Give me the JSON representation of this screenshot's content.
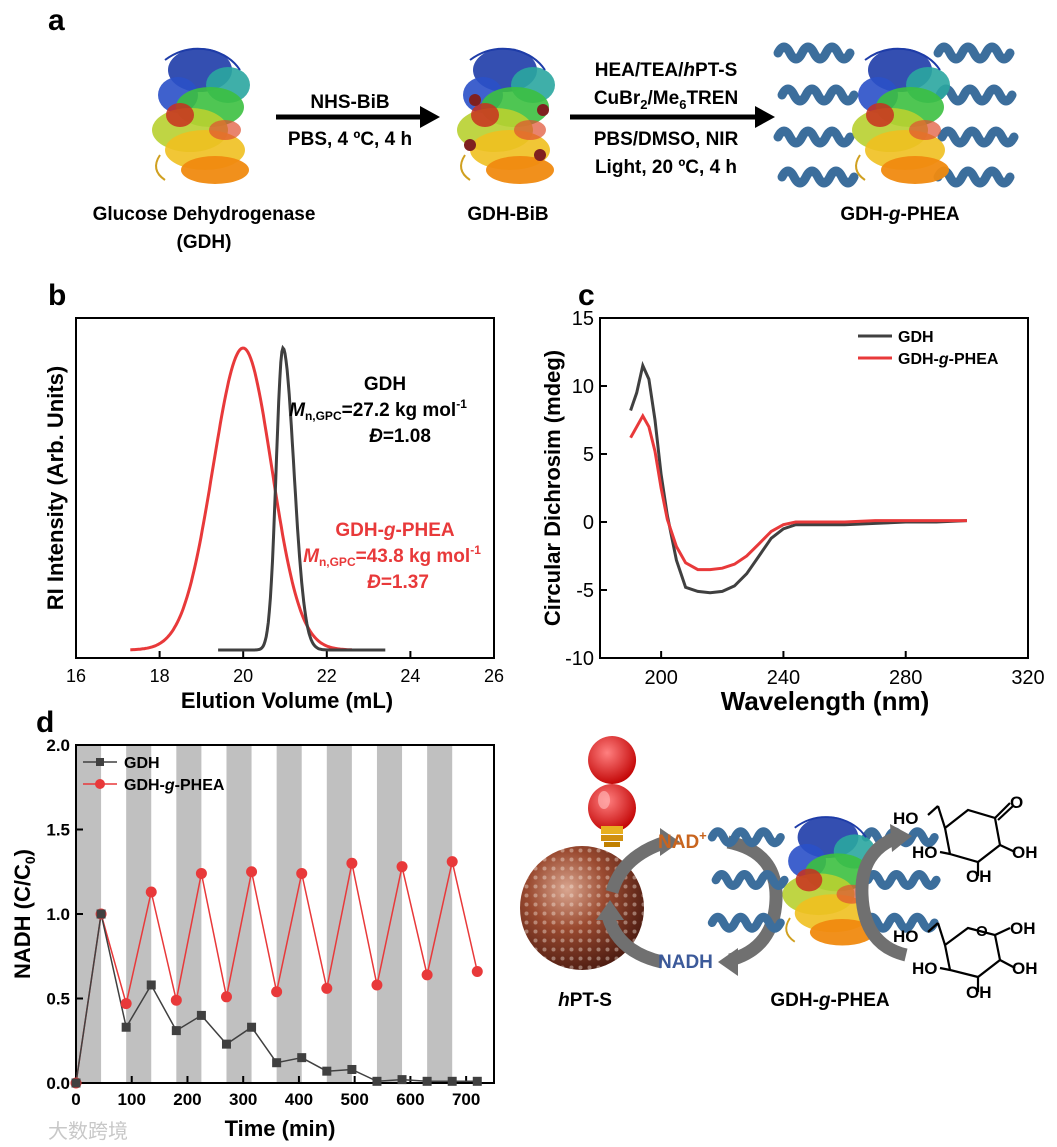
{
  "panel_labels": {
    "a": "a",
    "b": "b",
    "c": "c",
    "d": "d"
  },
  "scheme": {
    "protein1_label_line1": "Glucose Dehydrogenase",
    "protein1_label_line2": "(GDH)",
    "step1_above": "NHS-BiB",
    "step1_below": "PBS, 4 ºC, 4 h",
    "protein2_label": "GDH-BiB",
    "step2_line1": "HEA/TEA/hPT-S",
    "step2_line2_a": "CuBr",
    "step2_line2_sub": "2",
    "step2_line2_b": "/Me",
    "step2_line2_sub2": "6",
    "step2_line2_c": "TREN",
    "step2_line3": "PBS/DMSO, NIR",
    "step2_line4": "Light, 20 ºC, 4 h",
    "protein3_label": "GDH-g-PHEA"
  },
  "colors": {
    "gdh": "#404040",
    "gdh_g_phea": "#e8393a",
    "polymer": "#3c6e9c",
    "nad_plus": "#c8641e",
    "nadh": "#3c5a9a",
    "light_band": "#c0c0c0"
  },
  "chart_data": [
    {
      "panel": "b",
      "type": "line",
      "xlabel": "Elution Volume (mL)",
      "ylabel": "RI Intensity (Arb. Units)",
      "xlim": [
        16,
        26
      ],
      "xticks": [
        16,
        18,
        20,
        22,
        24,
        26
      ],
      "series": [
        {
          "name": "GDH",
          "peak_x": 20.95,
          "x_range": [
            19.4,
            23.4
          ],
          "peak_y": 1.0
        },
        {
          "name": "GDH-g-PHEA",
          "peak_x": 20.0,
          "x_range": [
            17.3,
            22.6
          ],
          "peak_y": 1.0
        }
      ],
      "annotations": [
        {
          "title": "GDH",
          "mn": "=27.2 kg mol",
          "dispersity": "=1.08"
        },
        {
          "title": "GDH-g-PHEA",
          "mn": "=43.8 kg mol",
          "dispersity": "=1.37"
        }
      ],
      "mn_symbol": "M",
      "mn_sub": "n,GPC",
      "mn_sup": "-1",
      "dispersity_symbol": "Đ"
    },
    {
      "panel": "c",
      "type": "line",
      "xlabel": "Wavelength (nm)",
      "ylabel": "Circular Dichrosim (mdeg)",
      "xlim": [
        180,
        320
      ],
      "ylim": [
        -10,
        15
      ],
      "xticks": [
        200,
        240,
        280,
        320
      ],
      "yticks": [
        -10,
        -5,
        0,
        5,
        10,
        15
      ],
      "legend": "top-right",
      "series": [
        {
          "name": "GDH",
          "x": [
            190,
            192,
            194,
            196,
            198,
            200,
            202,
            205,
            208,
            212,
            216,
            220,
            224,
            228,
            232,
            236,
            240,
            244,
            250,
            260,
            270,
            280,
            290,
            300
          ],
          "y": [
            8.2,
            9.5,
            11.5,
            10.5,
            7.5,
            3.5,
            0.5,
            -2.8,
            -4.8,
            -5.1,
            -5.2,
            -5.1,
            -4.7,
            -3.8,
            -2.5,
            -1.2,
            -0.5,
            -0.2,
            -0.2,
            -0.2,
            -0.1,
            0.0,
            0.0,
            0.1
          ]
        },
        {
          "name": "GDH-g-PHEA",
          "x": [
            190,
            192,
            194,
            196,
            198,
            200,
            202,
            205,
            208,
            212,
            216,
            220,
            224,
            228,
            232,
            236,
            240,
            244,
            250,
            260,
            270,
            280,
            290,
            300
          ],
          "y": [
            6.2,
            7.0,
            7.8,
            7.0,
            5.2,
            2.5,
            0.2,
            -1.8,
            -3.0,
            -3.5,
            -3.5,
            -3.4,
            -3.1,
            -2.5,
            -1.6,
            -0.7,
            -0.2,
            0.0,
            0.0,
            0.0,
            0.1,
            0.1,
            0.1,
            0.1
          ]
        }
      ]
    },
    {
      "panel": "d",
      "type": "line",
      "xlabel": "Time (min)",
      "ylabel_a": "NADH (C/C",
      "ylabel_sub": "0",
      "ylabel_b": ")",
      "xlim": [
        0,
        750
      ],
      "ylim": [
        0.0,
        2.0
      ],
      "xticks": [
        0,
        100,
        200,
        300,
        400,
        500,
        600,
        700
      ],
      "yticks": [
        "0.0",
        "0.5",
        "1.0",
        "1.5",
        "2.0"
      ],
      "legend": "top-left",
      "light_intervals": [
        [
          0,
          45
        ],
        [
          90,
          135
        ],
        [
          180,
          225
        ],
        [
          270,
          315
        ],
        [
          360,
          405
        ],
        [
          450,
          495
        ],
        [
          540,
          585
        ],
        [
          630,
          675
        ]
      ],
      "series": [
        {
          "name": "GDH",
          "x": [
            0,
            45,
            90,
            135,
            180,
            225,
            270,
            315,
            360,
            405,
            450,
            495,
            540,
            585,
            630,
            675,
            720
          ],
          "y": [
            0.0,
            1.0,
            0.33,
            0.58,
            0.31,
            0.4,
            0.23,
            0.33,
            0.12,
            0.15,
            0.07,
            0.08,
            0.01,
            0.02,
            0.01,
            0.01,
            0.01
          ]
        },
        {
          "name": "GDH-g-PHEA",
          "x": [
            0,
            45,
            90,
            135,
            180,
            225,
            270,
            315,
            360,
            405,
            450,
            495,
            540,
            585,
            630,
            675,
            720
          ],
          "y": [
            0.0,
            1.0,
            0.47,
            1.13,
            0.49,
            1.24,
            0.51,
            1.25,
            0.54,
            1.24,
            0.56,
            1.3,
            0.58,
            1.28,
            0.64,
            1.31,
            0.66
          ]
        }
      ]
    }
  ],
  "cycle": {
    "nad_plus": "NAD+",
    "nadh": "NADH",
    "catalyst_label": "hPT-S",
    "enzyme_label": "GDH-g-PHEA",
    "oh": "OH",
    "ho": "HO",
    "o": "O"
  },
  "watermark": "大数跨境"
}
